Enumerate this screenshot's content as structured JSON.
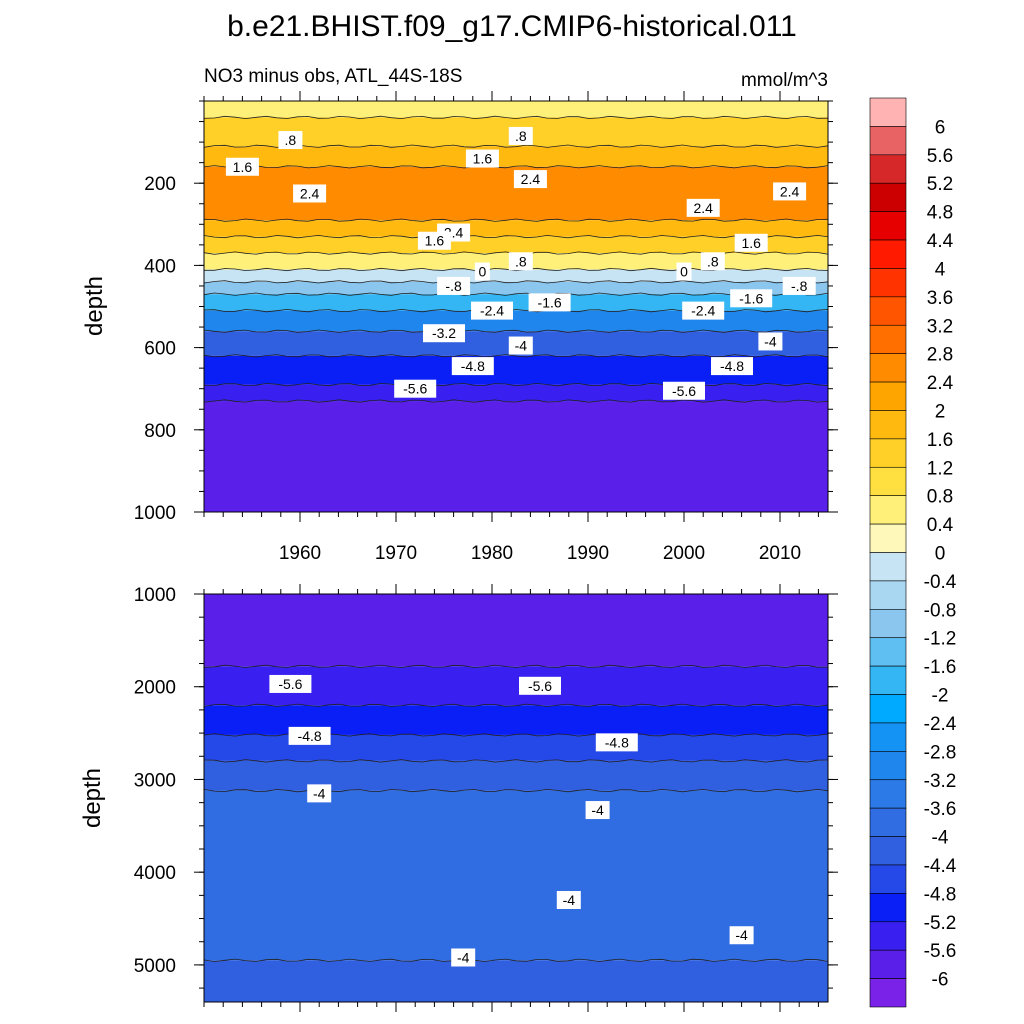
{
  "chart_data": {
    "type": "heatmap",
    "title": "b.e21.BHIST.f09_g17.CMIP6-historical.011",
    "subtitle": "NO3 minus obs, ATL_44S-18S",
    "units": "mmol/m^3",
    "xlabel": "",
    "ylabel": "depth",
    "x_ticks": [
      1960,
      1970,
      1980,
      1990,
      2000,
      2010
    ],
    "xlim": [
      1950,
      2015
    ],
    "colorbar": {
      "levels": [
        6,
        5.6,
        5.2,
        4.8,
        4.4,
        4,
        3.6,
        3.2,
        2.8,
        2.4,
        2,
        1.6,
        1.2,
        0.8,
        0.4,
        0,
        -0.4,
        -0.8,
        -1.2,
        -1.6,
        -2,
        -2.4,
        -2.8,
        -3.2,
        -3.6,
        -4,
        -4.4,
        -4.8,
        -5.2,
        -5.6,
        -6
      ],
      "labels": [
        "6",
        "5.6",
        "5.2",
        "4.8",
        "4.4",
        "4",
        "3.6",
        "3.2",
        "2.8",
        "2.4",
        "2",
        "1.6",
        "1.2",
        "0.8",
        "0.4",
        "0",
        "-0.4",
        "-0.8",
        "-1.2",
        "-1.6",
        "-2",
        "-2.4",
        "-2.8",
        "-3.2",
        "-3.6",
        "-4",
        "-4.4",
        "-4.8",
        "-5.2",
        "-5.6",
        "-6"
      ],
      "colors": [
        "#ffb3b3",
        "#e86464",
        "#d62828",
        "#cc0000",
        "#e60000",
        "#ff1a00",
        "#ff3300",
        "#ff5500",
        "#ff6f00",
        "#ff8c00",
        "#ffa500",
        "#ffb90f",
        "#ffd027",
        "#ffe040",
        "#fff07a",
        "#fff8bb",
        "#c7e4f5",
        "#a9d6f1",
        "#8ac6ee",
        "#5fbff2",
        "#34b6f5",
        "#00aaff",
        "#1593f5",
        "#1f86ee",
        "#2c79e8",
        "#306de3",
        "#3060e0",
        "#2548e8",
        "#0a1ff5",
        "#3a20f0",
        "#5a20ea",
        "#7a22e8"
      ]
    },
    "panels": [
      {
        "name": "upper",
        "ylim": [
          0,
          1000
        ],
        "y_ticks": [
          200,
          400,
          600,
          800,
          1000
        ],
        "depth_bands": [
          {
            "top": 0,
            "bottom": 40,
            "value": 0.4
          },
          {
            "top": 40,
            "bottom": 110,
            "value": 1.2
          },
          {
            "top": 110,
            "bottom": 160,
            "value": 1.6
          },
          {
            "top": 160,
            "bottom": 290,
            "value": 2.4
          },
          {
            "top": 290,
            "bottom": 330,
            "value": 1.6
          },
          {
            "top": 330,
            "bottom": 370,
            "value": 1.2
          },
          {
            "top": 370,
            "bottom": 410,
            "value": 0.4
          },
          {
            "top": 410,
            "bottom": 440,
            "value": -0.4
          },
          {
            "top": 440,
            "bottom": 470,
            "value": -1.2
          },
          {
            "top": 470,
            "bottom": 510,
            "value": -2.0
          },
          {
            "top": 510,
            "bottom": 560,
            "value": -3.2
          },
          {
            "top": 560,
            "bottom": 620,
            "value": -4.4
          },
          {
            "top": 620,
            "bottom": 690,
            "value": -5.2
          },
          {
            "top": 690,
            "bottom": 730,
            "value": -5.6
          },
          {
            "top": 730,
            "bottom": 1000,
            "value": -6.0
          }
        ],
        "contour_labels": [
          {
            "text": ".8",
            "year": 1959,
            "depth": 95
          },
          {
            "text": ".8",
            "year": 1983,
            "depth": 85
          },
          {
            "text": "1.6",
            "year": 1954,
            "depth": 160
          },
          {
            "text": "1.6",
            "year": 1979,
            "depth": 140
          },
          {
            "text": "2.4",
            "year": 1984,
            "depth": 190
          },
          {
            "text": "2.4",
            "year": 1961,
            "depth": 225
          },
          {
            "text": "2.4",
            "year": 2002,
            "depth": 260
          },
          {
            "text": "2.4",
            "year": 2011,
            "depth": 220
          },
          {
            "text": "2.4",
            "year": 1976,
            "depth": 320
          },
          {
            "text": "1.6",
            "year": 1974,
            "depth": 340
          },
          {
            "text": "1.6",
            "year": 2007,
            "depth": 345
          },
          {
            "text": "0",
            "year": 1979,
            "depth": 415
          },
          {
            "text": ".8",
            "year": 1983,
            "depth": 390
          },
          {
            "text": "0",
            "year": 2000,
            "depth": 415
          },
          {
            "text": ".8",
            "year": 2003,
            "depth": 390
          },
          {
            "text": "-.8",
            "year": 1976,
            "depth": 450
          },
          {
            "text": "-.8",
            "year": 2012,
            "depth": 450
          },
          {
            "text": "-1.6",
            "year": 1986,
            "depth": 490
          },
          {
            "text": "-1.6",
            "year": 2007,
            "depth": 480
          },
          {
            "text": "-2.4",
            "year": 1980,
            "depth": 510
          },
          {
            "text": "-2.4",
            "year": 2002,
            "depth": 510
          },
          {
            "text": "-3.2",
            "year": 1975,
            "depth": 565
          },
          {
            "text": "-4",
            "year": 1983,
            "depth": 595
          },
          {
            "text": "-4",
            "year": 2009,
            "depth": 585
          },
          {
            "text": "-4.8",
            "year": 1978,
            "depth": 645
          },
          {
            "text": "-4.8",
            "year": 2005,
            "depth": 645
          },
          {
            "text": "-5.6",
            "year": 1972,
            "depth": 700
          },
          {
            "text": "-5.6",
            "year": 2000,
            "depth": 705
          }
        ]
      },
      {
        "name": "lower",
        "ylim": [
          1000,
          5400
        ],
        "y_ticks": [
          1000,
          2000,
          3000,
          4000,
          5000
        ],
        "depth_bands": [
          {
            "top": 1000,
            "bottom": 1780,
            "value": -6.0
          },
          {
            "top": 1780,
            "bottom": 2200,
            "value": -5.6
          },
          {
            "top": 2200,
            "bottom": 2520,
            "value": -5.2
          },
          {
            "top": 2520,
            "bottom": 2800,
            "value": -4.8
          },
          {
            "top": 2800,
            "bottom": 3120,
            "value": -4.4
          },
          {
            "top": 3120,
            "bottom": 4950,
            "value": -4.0
          },
          {
            "top": 4950,
            "bottom": 5400,
            "value": -4.4
          }
        ],
        "contour_labels": [
          {
            "text": "-5.6",
            "year": 1959,
            "depth": 1970
          },
          {
            "text": "-5.6",
            "year": 1985,
            "depth": 1990
          },
          {
            "text": "-4.8",
            "year": 1961,
            "depth": 2530
          },
          {
            "text": "-4.8",
            "year": 1993,
            "depth": 2600
          },
          {
            "text": "-4",
            "year": 1962,
            "depth": 3150
          },
          {
            "text": "-4",
            "year": 1991,
            "depth": 3330
          },
          {
            "text": "-4",
            "year": 1988,
            "depth": 4300
          },
          {
            "text": "-4",
            "year": 2006,
            "depth": 4680
          },
          {
            "text": "-4",
            "year": 1977,
            "depth": 4920
          }
        ]
      }
    ]
  }
}
